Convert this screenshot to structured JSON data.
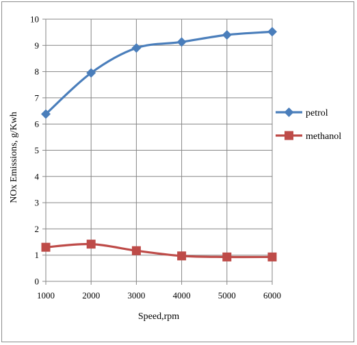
{
  "chart_data": {
    "type": "line",
    "title": "",
    "xlabel": "Speed,rpm",
    "ylabel": "NOx Emissions, g/Kwh",
    "x": [
      1000,
      2000,
      3000,
      4000,
      5000,
      6000
    ],
    "xlim": [
      1000,
      6000
    ],
    "ylim": [
      0,
      10
    ],
    "yticks": [
      0,
      1,
      2,
      3,
      4,
      5,
      6,
      7,
      8,
      9,
      10
    ],
    "grid": true,
    "legend_position": "right",
    "series": [
      {
        "name": "petrol",
        "values": [
          6.38,
          7.95,
          8.9,
          9.13,
          9.4,
          9.52
        ],
        "color": "#4a7ebb",
        "marker": "diamond"
      },
      {
        "name": "methanol",
        "values": [
          1.3,
          1.42,
          1.17,
          0.97,
          0.93,
          0.93
        ],
        "color": "#be4b48",
        "marker": "square"
      }
    ]
  }
}
